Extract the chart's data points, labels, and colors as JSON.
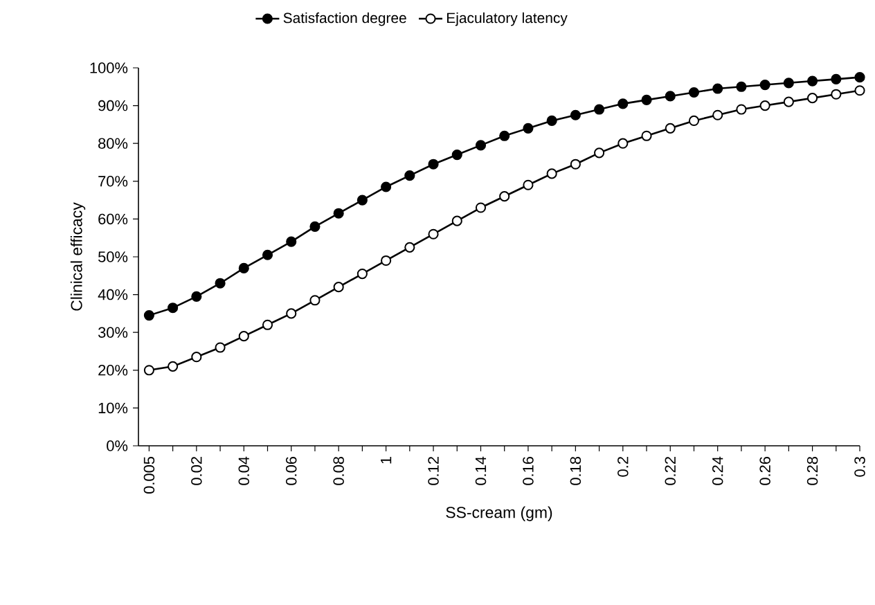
{
  "chart_data": {
    "type": "line",
    "xlabel": "SS-cream (gm)",
    "ylabel": "Clinical efficacy",
    "categories": [
      "0.005",
      null,
      "0.02",
      null,
      "0.04",
      null,
      "0.06",
      null,
      "0.08",
      null,
      "1",
      null,
      "0.12",
      null,
      "0.14",
      null,
      "0.16",
      null,
      "0.18",
      null,
      "0.2",
      null,
      "0.22",
      null,
      "0.24",
      null,
      "0.26",
      null,
      "0.28",
      null,
      "0.3"
    ],
    "series": [
      {
        "name": "Satisfaction degree",
        "color": "#000000",
        "values": [
          34.5,
          36.5,
          39.5,
          43,
          47,
          50.5,
          54,
          58,
          61.5,
          65,
          68.5,
          71.5,
          74.5,
          77,
          79.5,
          82,
          84,
          86,
          87.5,
          89,
          90.5,
          91.5,
          92.5,
          93.5,
          94.5,
          95,
          95.5,
          96,
          96.5,
          97,
          97.5
        ]
      },
      {
        "name": "Ejaculatory latency",
        "color": "#000000",
        "values": [
          20,
          21,
          23.5,
          26,
          29,
          32,
          35,
          38.5,
          42,
          45.5,
          49,
          52.5,
          56,
          59.5,
          63,
          66,
          69,
          72,
          74.5,
          77.5,
          80,
          82,
          84,
          86,
          87.5,
          89,
          90,
          91,
          92,
          93,
          94
        ]
      }
    ],
    "ylim": [
      0,
      100
    ],
    "yticks": [
      {
        "value": 0,
        "label": "0%"
      },
      {
        "value": 10,
        "label": "10%"
      },
      {
        "value": 20,
        "label": "20%"
      },
      {
        "value": 30,
        "label": "30%"
      },
      {
        "value": 40,
        "label": "40%"
      },
      {
        "value": 50,
        "label": "50%"
      },
      {
        "value": 60,
        "label": "60%"
      },
      {
        "value": 70,
        "label": "70%"
      },
      {
        "value": 80,
        "label": "80%"
      },
      {
        "value": 90,
        "label": "90%"
      },
      {
        "value": 100,
        "label": "100%"
      }
    ],
    "grid": false,
    "legend": "top",
    "marker": "circle",
    "line_style": "solid"
  }
}
